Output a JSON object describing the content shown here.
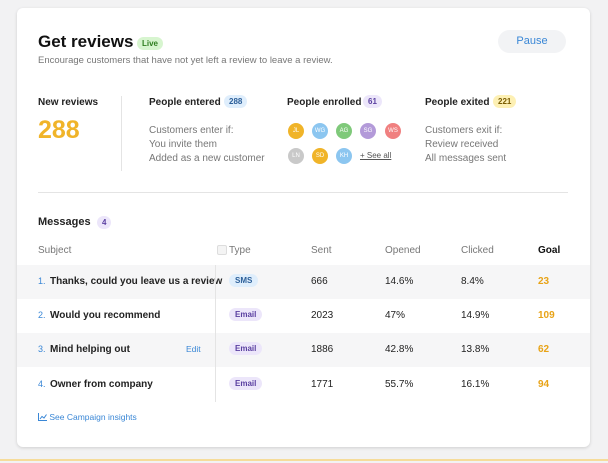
{
  "header": {
    "title": "Get reviews",
    "status": "Live",
    "subtitle": "Encourage customers that have not yet left a review to leave a review.",
    "button": "Pause"
  },
  "stats": {
    "new_reviews": {
      "label": "New reviews",
      "value": 288
    },
    "entered": {
      "label": "People entered",
      "count": 288,
      "lines": [
        "Customers enter if:",
        "You invite them",
        "Added as a new customer"
      ]
    },
    "enrolled": {
      "label": "People enrolled",
      "count": 61,
      "avatars": [
        "JL",
        "WG",
        "AG",
        "SG",
        "WS",
        "LN",
        "SD",
        "KH"
      ],
      "see_all": "+ See all"
    },
    "exited": {
      "label": "People exited",
      "count": 221,
      "lines": [
        "Customers exit if:",
        "Review received",
        "All messages sent"
      ]
    }
  },
  "messages": {
    "title": "Messages",
    "count": 4,
    "columns": [
      "Subject",
      "Type",
      "Sent",
      "Opened",
      "Clicked",
      "Goal"
    ],
    "rows": [
      {
        "index": "1.",
        "subject": "Thanks, could you leave us a review",
        "type": "SMS",
        "sent": 666,
        "opened": "14.6%",
        "clicked": "8.4%",
        "goal": 23
      },
      {
        "index": "2.",
        "subject": "Would you recommend",
        "type": "Email",
        "sent": 2023,
        "opened": "47%",
        "clicked": "14.9%",
        "goal": 109
      },
      {
        "index": "3.",
        "subject": "Mind helping out",
        "type": "Email",
        "sent": 1886,
        "opened": "42.8%",
        "clicked": "13.8%",
        "goal": 62
      },
      {
        "index": "4.",
        "subject": "Owner from company",
        "type": "Email",
        "sent": 1771,
        "opened": "55.7%",
        "clicked": "16.1%",
        "goal": 94
      }
    ],
    "edit": "Edit",
    "insights": "See Campaign insights"
  }
}
